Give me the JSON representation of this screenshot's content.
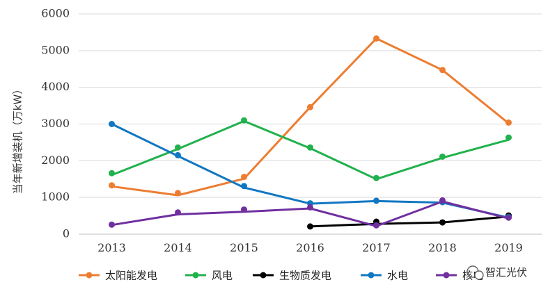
{
  "chart_data": {
    "type": "line",
    "title": "",
    "xlabel": "",
    "ylabel": "当年新增装机（万kW）",
    "categories": [
      "2013",
      "2014",
      "2015",
      "2016",
      "2017",
      "2018",
      "2019"
    ],
    "yticks": [
      "0",
      "1000",
      "2000",
      "3000",
      "4000",
      "5000",
      "6000"
    ],
    "ylim": [
      0,
      6000
    ],
    "grid": true,
    "legend_position": "bottom",
    "series": [
      {
        "name": "太阳能发电",
        "color": "#ED7D31",
        "values": [
          1300,
          1060,
          1510,
          3460,
          5330,
          4470,
          3020
        ]
      },
      {
        "name": "风电",
        "color": "#21B14D",
        "values": [
          1610,
          2320,
          3080,
          2340,
          1500,
          2080,
          2570
        ]
      },
      {
        "name": "生物质发电",
        "color": "#000000",
        "values": [
          null,
          null,
          null,
          210,
          280,
          320,
          480
        ]
      },
      {
        "name": "水电",
        "color": "#1177C2",
        "values": [
          3000,
          2130,
          1270,
          830,
          900,
          860,
          450
        ]
      },
      {
        "name": "核电",
        "color": "#7030A0",
        "values": [
          250,
          540,
          610,
          700,
          220,
          890,
          430
        ]
      }
    ],
    "markers": [
      {
        "series": 0,
        "values": [
          1330,
          1120,
          1560,
          3460,
          5330,
          4470,
          3040
        ]
      },
      {
        "series": 1,
        "values": [
          1660,
          2360,
          3100,
          2360,
          1530,
          2110,
          2630
        ]
      },
      {
        "series": 2,
        "values": [
          null,
          null,
          null,
          210,
          340,
          320,
          510
        ]
      },
      {
        "series": 3,
        "values": [
          3000,
          2150,
          1310,
          840,
          910,
          870,
          470
        ]
      },
      {
        "series": 4,
        "values": [
          260,
          590,
          670,
          730,
          240,
          920,
          450
        ]
      }
    ]
  },
  "watermark": {
    "text": "智汇光伏",
    "icon": "wechat-icon"
  }
}
